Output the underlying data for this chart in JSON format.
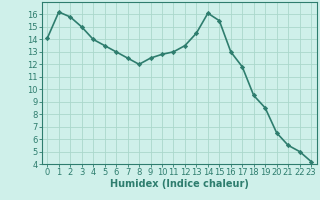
{
  "x": [
    0,
    1,
    2,
    3,
    4,
    5,
    6,
    7,
    8,
    9,
    10,
    11,
    12,
    13,
    14,
    15,
    16,
    17,
    18,
    19,
    20,
    21,
    22,
    23
  ],
  "y": [
    14.1,
    16.2,
    15.8,
    15.0,
    14.0,
    13.5,
    13.0,
    12.5,
    12.0,
    12.5,
    12.8,
    13.0,
    13.5,
    14.5,
    16.1,
    15.5,
    13.0,
    11.8,
    9.5,
    8.5,
    6.5,
    5.5,
    5.0,
    4.2
  ],
  "line_color": "#2e7d6e",
  "marker": "D",
  "marker_size": 2.2,
  "bg_color": "#cff0ea",
  "grid_color": "#aad8cc",
  "xlabel": "Humidex (Indice chaleur)",
  "ylim": [
    4,
    17
  ],
  "xlim": [
    -0.5,
    23.5
  ],
  "yticks": [
    4,
    5,
    6,
    7,
    8,
    9,
    10,
    11,
    12,
    13,
    14,
    15,
    16
  ],
  "xticks": [
    0,
    1,
    2,
    3,
    4,
    5,
    6,
    7,
    8,
    9,
    10,
    11,
    12,
    13,
    14,
    15,
    16,
    17,
    18,
    19,
    20,
    21,
    22,
    23
  ],
  "axis_color": "#2e7d6e",
  "font_color": "#2e7d6e",
  "xlabel_fontsize": 7,
  "tick_fontsize": 6,
  "line_width": 1.2
}
